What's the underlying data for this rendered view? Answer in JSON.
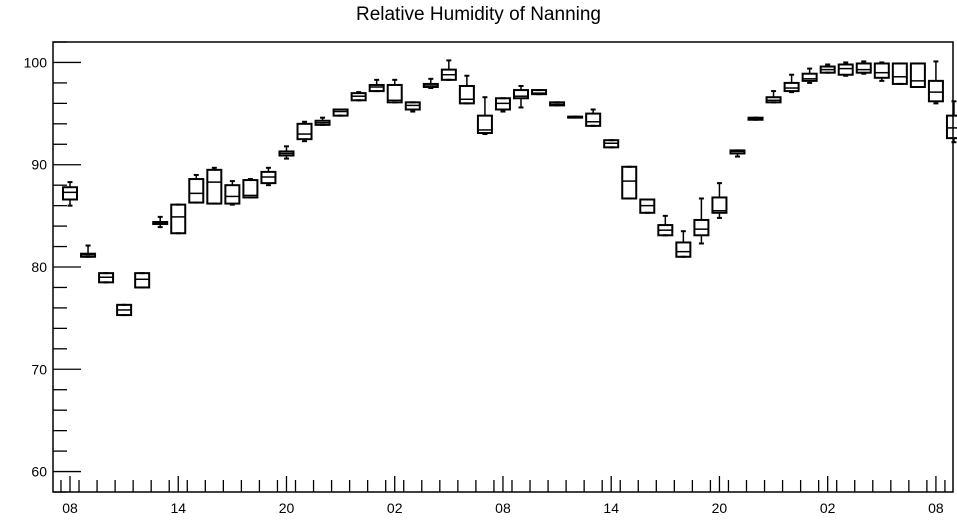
{
  "chart_data": {
    "type": "box",
    "title": "Relative Humidity of Nanning",
    "xlabel": "",
    "ylabel": "",
    "ylim": [
      58,
      102
    ],
    "y_ticks": [
      60,
      70,
      80,
      90,
      100
    ],
    "x_tick_labels": [
      "08",
      "14",
      "20",
      "02",
      "08",
      "14",
      "20",
      "02",
      "08"
    ],
    "x_tick_positions": [
      0,
      6,
      12,
      18,
      24,
      30,
      36,
      42,
      48
    ],
    "grid": false,
    "boxes": [
      {
        "x": 0,
        "min": 86.0,
        "q1": 86.6,
        "median": 87.3,
        "q3": 87.8,
        "max": 88.3
      },
      {
        "x": 1,
        "min": 81.0,
        "q1": 81.0,
        "median": 81.2,
        "q3": 81.3,
        "max": 82.1
      },
      {
        "x": 2,
        "min": 78.5,
        "q1": 78.5,
        "median": 79.0,
        "q3": 79.4,
        "max": 79.4
      },
      {
        "x": 3,
        "min": 75.3,
        "q1": 75.3,
        "median": 75.8,
        "q3": 76.3,
        "max": 76.3
      },
      {
        "x": 4,
        "min": 78.0,
        "q1": 78.0,
        "median": 78.8,
        "q3": 79.4,
        "max": 79.4
      },
      {
        "x": 5,
        "min": 83.9,
        "q1": 84.2,
        "median": 84.3,
        "q3": 84.4,
        "max": 84.9
      },
      {
        "x": 6,
        "min": 83.3,
        "q1": 83.3,
        "median": 84.9,
        "q3": 86.1,
        "max": 86.1
      },
      {
        "x": 7,
        "min": 86.3,
        "q1": 86.3,
        "median": 87.2,
        "q3": 88.6,
        "max": 89.0
      },
      {
        "x": 8,
        "min": 86.2,
        "q1": 86.2,
        "median": 88.3,
        "q3": 89.5,
        "max": 89.7
      },
      {
        "x": 9,
        "min": 86.1,
        "q1": 86.2,
        "median": 86.9,
        "q3": 88.0,
        "max": 88.4
      },
      {
        "x": 10,
        "min": 86.8,
        "q1": 86.8,
        "median": 87.0,
        "q3": 88.5,
        "max": 88.6
      },
      {
        "x": 11,
        "min": 88.0,
        "q1": 88.2,
        "median": 88.8,
        "q3": 89.3,
        "max": 89.7
      },
      {
        "x": 12,
        "min": 90.6,
        "q1": 90.9,
        "median": 91.1,
        "q3": 91.3,
        "max": 91.8
      },
      {
        "x": 13,
        "min": 92.3,
        "q1": 92.5,
        "median": 93.0,
        "q3": 94.0,
        "max": 94.2
      },
      {
        "x": 14,
        "min": 93.9,
        "q1": 93.9,
        "median": 94.1,
        "q3": 94.3,
        "max": 94.6
      },
      {
        "x": 15,
        "min": 94.8,
        "q1": 94.8,
        "median": 95.2,
        "q3": 95.4,
        "max": 95.4
      },
      {
        "x": 16,
        "min": 96.3,
        "q1": 96.3,
        "median": 96.7,
        "q3": 97.0,
        "max": 97.1
      },
      {
        "x": 17,
        "min": 97.2,
        "q1": 97.2,
        "median": 97.6,
        "q3": 97.8,
        "max": 98.3
      },
      {
        "x": 18,
        "min": 96.1,
        "q1": 96.1,
        "median": 96.3,
        "q3": 97.8,
        "max": 98.3
      },
      {
        "x": 19,
        "min": 95.2,
        "q1": 95.4,
        "median": 95.8,
        "q3": 96.1,
        "max": 96.1
      },
      {
        "x": 20,
        "min": 97.5,
        "q1": 97.6,
        "median": 97.7,
        "q3": 97.9,
        "max": 98.4
      },
      {
        "x": 21,
        "min": 98.3,
        "q1": 98.3,
        "median": 98.8,
        "q3": 99.3,
        "max": 100.2
      },
      {
        "x": 22,
        "min": 96.0,
        "q1": 96.0,
        "median": 96.4,
        "q3": 97.7,
        "max": 98.7
      },
      {
        "x": 23,
        "min": 93.0,
        "q1": 93.1,
        "median": 93.4,
        "q3": 94.8,
        "max": 96.6
      },
      {
        "x": 24,
        "min": 95.2,
        "q1": 95.4,
        "median": 96.0,
        "q3": 96.5,
        "max": 96.5
      },
      {
        "x": 25,
        "min": 95.6,
        "q1": 96.5,
        "median": 96.7,
        "q3": 97.3,
        "max": 97.7
      },
      {
        "x": 26,
        "min": 96.9,
        "q1": 96.9,
        "median": 97.0,
        "q3": 97.3,
        "max": 97.3
      },
      {
        "x": 27,
        "min": 95.8,
        "q1": 95.8,
        "median": 95.9,
        "q3": 96.1,
        "max": 96.1
      },
      {
        "x": 28,
        "min": 94.7,
        "q1": 94.7,
        "median": 94.7,
        "q3": 94.7,
        "max": 94.7
      },
      {
        "x": 29,
        "min": 93.8,
        "q1": 93.8,
        "median": 94.2,
        "q3": 95.0,
        "max": 95.4
      },
      {
        "x": 30,
        "min": 91.7,
        "q1": 91.7,
        "median": 92.1,
        "q3": 92.4,
        "max": 92.4
      },
      {
        "x": 31,
        "min": 86.7,
        "q1": 86.7,
        "median": 88.4,
        "q3": 89.8,
        "max": 89.8
      },
      {
        "x": 32,
        "min": 85.3,
        "q1": 85.3,
        "median": 86.0,
        "q3": 86.6,
        "max": 86.6
      },
      {
        "x": 33,
        "min": 83.1,
        "q1": 83.1,
        "median": 83.6,
        "q3": 84.1,
        "max": 85.0
      },
      {
        "x": 34,
        "min": 81.0,
        "q1": 81.0,
        "median": 81.5,
        "q3": 82.4,
        "max": 83.5
      },
      {
        "x": 35,
        "min": 82.3,
        "q1": 83.1,
        "median": 83.7,
        "q3": 84.6,
        "max": 86.7
      },
      {
        "x": 36,
        "min": 84.8,
        "q1": 85.3,
        "median": 85.5,
        "q3": 86.8,
        "max": 88.2
      },
      {
        "x": 37,
        "min": 90.8,
        "q1": 91.1,
        "median": 91.3,
        "q3": 91.4,
        "max": 91.4
      },
      {
        "x": 38,
        "min": 94.4,
        "q1": 94.4,
        "median": 94.5,
        "q3": 94.6,
        "max": 94.6
      },
      {
        "x": 39,
        "min": 96.1,
        "q1": 96.1,
        "median": 96.3,
        "q3": 96.6,
        "max": 97.2
      },
      {
        "x": 40,
        "min": 97.1,
        "q1": 97.2,
        "median": 97.5,
        "q3": 98.0,
        "max": 98.8
      },
      {
        "x": 41,
        "min": 98.0,
        "q1": 98.2,
        "median": 98.4,
        "q3": 98.9,
        "max": 99.4
      },
      {
        "x": 42,
        "min": 99.0,
        "q1": 99.0,
        "median": 99.3,
        "q3": 99.6,
        "max": 99.8
      },
      {
        "x": 43,
        "min": 98.7,
        "q1": 98.8,
        "median": 99.4,
        "q3": 99.8,
        "max": 100.0
      },
      {
        "x": 44,
        "min": 98.9,
        "q1": 99.0,
        "median": 99.3,
        "q3": 99.9,
        "max": 100.1
      },
      {
        "x": 45,
        "min": 98.2,
        "q1": 98.5,
        "median": 99.0,
        "q3": 99.9,
        "max": 100.0
      },
      {
        "x": 46,
        "min": 97.9,
        "q1": 97.9,
        "median": 98.6,
        "q3": 99.9,
        "max": 99.9
      },
      {
        "x": 47,
        "min": 97.6,
        "q1": 97.6,
        "median": 98.2,
        "q3": 99.9,
        "max": 99.9
      },
      {
        "x": 48,
        "min": 96.0,
        "q1": 96.2,
        "median": 97.1,
        "q3": 98.2,
        "max": 100.1
      },
      {
        "x": 49,
        "min": 92.2,
        "q1": 92.6,
        "median": 93.6,
        "q3": 94.8,
        "max": 96.2
      }
    ]
  }
}
